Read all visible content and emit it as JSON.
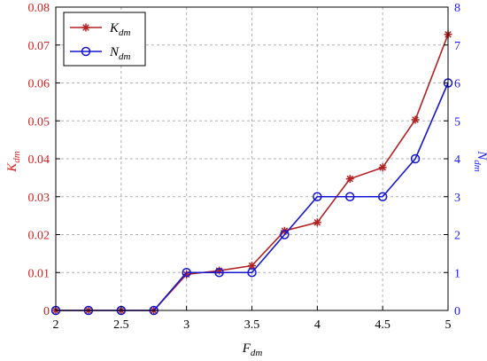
{
  "chart_data": {
    "type": "line",
    "x": [
      2,
      2.25,
      2.5,
      2.75,
      3,
      3.25,
      3.5,
      3.75,
      4,
      4.25,
      4.5,
      4.75,
      5
    ],
    "xlabel": {
      "main": "F",
      "sub": "dm"
    },
    "ylabel_left": {
      "main": "K",
      "sub": "dm"
    },
    "ylabel_right": {
      "main": "N",
      "sub": "dm"
    },
    "xlim": [
      2,
      5
    ],
    "ylim_left": [
      0,
      0.08
    ],
    "ylim_right": [
      0,
      8
    ],
    "x_ticks": [
      "2",
      "2.5",
      "3",
      "3.5",
      "4",
      "4.5",
      "5"
    ],
    "y_left_ticks": [
      "0",
      "0.01",
      "0.02",
      "0.03",
      "0.04",
      "0.05",
      "0.06",
      "0.07",
      "0.08"
    ],
    "y_right_ticks": [
      "0",
      "1",
      "2",
      "3",
      "4",
      "5",
      "6",
      "7",
      "8"
    ],
    "grid": true,
    "legend_position": "top-left",
    "series": [
      {
        "name": {
          "main": "K",
          "sub": "dm"
        },
        "axis": "left",
        "color": "#b22222",
        "marker": "asterisk",
        "values": [
          0,
          0,
          0,
          0,
          0.0095,
          0.0105,
          0.0118,
          0.021,
          0.0232,
          0.0347,
          0.0377,
          0.0503,
          0.0728
        ]
      },
      {
        "name": {
          "main": "N",
          "sub": "dm"
        },
        "axis": "right",
        "color": "#1414d2",
        "marker": "circle",
        "values": [
          0,
          0,
          0,
          0,
          1,
          1,
          1,
          2,
          3,
          3,
          3,
          4,
          6
        ]
      }
    ],
    "colors": {
      "left_axis": "#d11f1f",
      "right_axis": "#1a1aff",
      "grid": "#b0b0b0",
      "frame": "#000000"
    }
  }
}
